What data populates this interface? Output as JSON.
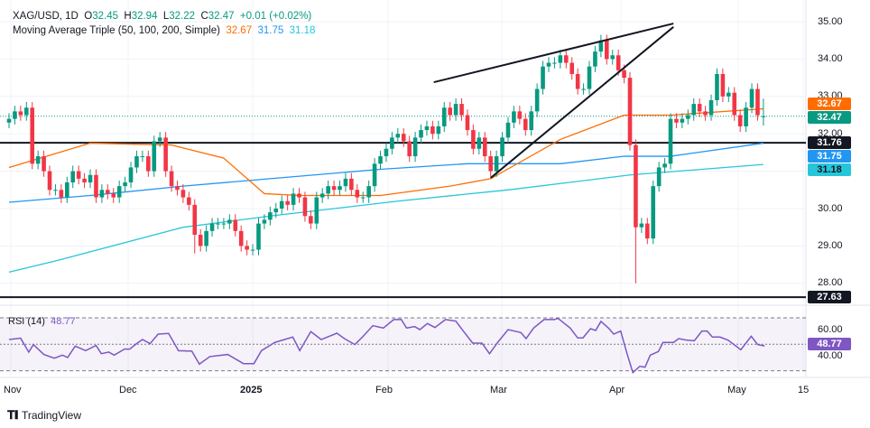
{
  "header": {
    "symbol": "XAG/USD, 1D",
    "o_label": "O",
    "o": "32.45",
    "h_label": "H",
    "h": "32.94",
    "l_label": "L",
    "l": "32.22",
    "c_label": "C",
    "c": "32.47",
    "change": "+0.01 (+0.02%)",
    "ma_title": "Moving Average Triple (50, 100, 200, Simple)",
    "ma50": "32.67",
    "ma100": "31.75",
    "ma200": "31.18"
  },
  "rsi": {
    "title": "RSI (14)",
    "value": "48.77"
  },
  "price_ticks": [
    "35.00",
    "34.00",
    "33.00",
    "32.00",
    "30.00",
    "29.00",
    "28.00"
  ],
  "rsi_ticks": [
    "60.00",
    "40.00"
  ],
  "price_labels": {
    "ma50": "32.67",
    "close": "32.47",
    "support_high": "31.76",
    "ma100": "31.75",
    "ma200": "31.18",
    "support_low": "27.63"
  },
  "date_labels": [
    "Nov",
    "Dec",
    "2025",
    "Feb",
    "Mar",
    "Apr",
    "May",
    "15"
  ],
  "footer": {
    "brand": "TradingView"
  },
  "colors": {
    "up": "#089981",
    "down": "#f23645",
    "ma50": "#ff6d00",
    "ma100": "#2196f3",
    "ma200": "#26c6da",
    "rsi": "#7e57c2",
    "line": "#131722"
  },
  "chart_data": {
    "type": "candlestick",
    "title": "XAG/USD, 1D",
    "ylim": [
      27.4,
      35.3
    ],
    "first_open": 32.3,
    "closes": [
      32.4,
      32.6,
      32.5,
      32.7,
      31.2,
      31.4,
      31.0,
      30.5,
      30.5,
      30.3,
      30.7,
      31.0,
      30.8,
      30.7,
      30.9,
      30.3,
      30.5,
      30.4,
      30.3,
      30.6,
      30.7,
      31.1,
      31.4,
      31.4,
      31.0,
      31.8,
      31.9,
      31.0,
      30.6,
      30.5,
      30.3,
      30.1,
      29.3,
      29.0,
      29.4,
      29.6,
      29.6,
      29.6,
      29.7,
      29.4,
      29.0,
      28.9,
      28.9,
      29.6,
      29.7,
      29.9,
      30.0,
      30.2,
      30.1,
      30.4,
      30.3,
      29.8,
      29.6,
      30.3,
      30.4,
      30.6,
      30.5,
      30.6,
      30.8,
      30.5,
      30.3,
      30.3,
      30.6,
      31.2,
      31.4,
      31.6,
      31.9,
      32.0,
      31.8,
      31.4,
      31.9,
      32.1,
      32.2,
      32.0,
      32.2,
      32.7,
      32.5,
      32.8,
      32.5,
      32.1,
      31.6,
      31.9,
      31.4,
      31.0,
      31.4,
      31.9,
      32.3,
      32.6,
      32.4,
      32.1,
      32.6,
      33.2,
      33.8,
      33.9,
      33.9,
      34.1,
      33.9,
      33.6,
      33.2,
      33.2,
      33.8,
      34.2,
      34.5,
      34.0,
      34.1,
      33.7,
      33.5,
      31.7,
      29.5,
      29.6,
      29.2,
      30.6,
      31.1,
      31.2,
      32.4,
      32.3,
      32.4,
      32.5,
      32.8,
      32.6,
      32.5,
      32.9,
      33.6,
      33.0,
      33.1,
      32.5,
      32.2,
      32.7,
      33.2,
      32.5,
      32.47
    ],
    "low_overrides": {
      "108": 28.0,
      "32": 28.8
    },
    "last_ohlc": [
      32.45,
      32.94,
      32.22,
      32.47
    ],
    "ma50": [
      [
        0,
        31.1
      ],
      [
        14,
        31.75
      ],
      [
        28,
        31.7
      ],
      [
        37,
        31.35
      ],
      [
        44,
        30.4
      ],
      [
        50,
        30.35
      ],
      [
        64,
        30.35
      ],
      [
        76,
        30.6
      ],
      [
        83,
        30.8
      ],
      [
        95,
        31.85
      ],
      [
        106,
        32.5
      ],
      [
        114,
        32.5
      ],
      [
        130,
        32.67
      ]
    ],
    "ma100": [
      [
        0,
        30.17
      ],
      [
        14,
        30.35
      ],
      [
        30,
        30.6
      ],
      [
        45,
        30.8
      ],
      [
        64,
        31.05
      ],
      [
        79,
        31.2
      ],
      [
        95,
        31.2
      ],
      [
        106,
        31.4
      ],
      [
        114,
        31.4
      ],
      [
        130,
        31.75
      ]
    ],
    "ma200": [
      [
        0,
        28.3
      ],
      [
        8,
        28.6
      ],
      [
        30,
        29.5
      ],
      [
        45,
        29.8
      ],
      [
        67,
        30.2
      ],
      [
        86,
        30.5
      ],
      [
        107,
        30.9
      ],
      [
        130,
        31.18
      ]
    ],
    "horizontal_levels": [
      31.76,
      27.63
    ],
    "close_line": 32.47,
    "wedge": [
      [
        [
          73.2,
          33.38
        ],
        [
          114.5,
          34.95
        ]
      ],
      [
        [
          83,
          30.82
        ],
        [
          114.5,
          34.86
        ]
      ]
    ],
    "rsi_series": [
      [
        0,
        53.6
      ],
      [
        2,
        54.6
      ],
      [
        3.4,
        44.1
      ],
      [
        4.2,
        49.8
      ],
      [
        6,
        42.3
      ],
      [
        7.8,
        39.5
      ],
      [
        9.2,
        41.8
      ],
      [
        10.1,
        40
      ],
      [
        11.4,
        48.6
      ],
      [
        13.2,
        45.2
      ],
      [
        15,
        49.1
      ],
      [
        15.9,
        42.9
      ],
      [
        17.2,
        44.1
      ],
      [
        18.1,
        41.8
      ],
      [
        19.9,
        46.4
      ],
      [
        20.8,
        46.4
      ],
      [
        22.1,
        50.9
      ],
      [
        23,
        53.6
      ],
      [
        24.3,
        50.5
      ],
      [
        25.7,
        57.7
      ],
      [
        27.5,
        58.2
      ],
      [
        29.2,
        45.2
      ],
      [
        31.5,
        44.8
      ],
      [
        32.8,
        35
      ],
      [
        34.6,
        40.7
      ],
      [
        37.7,
        42.3
      ],
      [
        40.4,
        35.4
      ],
      [
        42.2,
        35.4
      ],
      [
        43.5,
        45.2
      ],
      [
        45.8,
        51.4
      ],
      [
        48.9,
        55.5
      ],
      [
        50.1,
        45.2
      ],
      [
        52,
        59.6
      ],
      [
        53.8,
        53.6
      ],
      [
        56.5,
        58.4
      ],
      [
        57.8,
        54.3
      ],
      [
        59.6,
        49.8
      ],
      [
        60.9,
        55.5
      ],
      [
        62.7,
        64.1
      ],
      [
        64.5,
        62.3
      ],
      [
        66.3,
        68.7
      ],
      [
        67.6,
        68.7
      ],
      [
        68.5,
        62.3
      ],
      [
        69.9,
        63.4
      ],
      [
        70.8,
        61.1
      ],
      [
        72.1,
        65.7
      ],
      [
        73.4,
        62.7
      ],
      [
        75.2,
        68.7
      ],
      [
        77,
        67.5
      ],
      [
        78.2,
        60.5
      ],
      [
        79.9,
        50.9
      ],
      [
        81.5,
        50.9
      ],
      [
        82.8,
        42.9
      ],
      [
        84.2,
        51.4
      ],
      [
        86,
        61.1
      ],
      [
        88.2,
        58.9
      ],
      [
        89.1,
        54.3
      ],
      [
        90.4,
        62.3
      ],
      [
        92.2,
        68.7
      ],
      [
        94,
        68.7
      ],
      [
        94.6,
        69.6
      ],
      [
        96.7,
        62.3
      ],
      [
        98,
        54.8
      ],
      [
        98.9,
        54.8
      ],
      [
        100.2,
        61.8
      ],
      [
        101.1,
        60.5
      ],
      [
        102,
        67.3
      ],
      [
        103.3,
        62.3
      ],
      [
        104.2,
        57.7
      ],
      [
        105.4,
        60
      ],
      [
        106.5,
        42.9
      ],
      [
        107.5,
        28.6
      ],
      [
        108.7,
        33.4
      ],
      [
        109.6,
        32.7
      ],
      [
        110.5,
        41.8
      ],
      [
        111.9,
        44.5
      ],
      [
        112.7,
        51.4
      ],
      [
        114.5,
        51.4
      ],
      [
        115.4,
        54.3
      ],
      [
        116.7,
        53.2
      ],
      [
        118.1,
        52.7
      ],
      [
        119.4,
        60
      ],
      [
        120.3,
        60
      ],
      [
        121.2,
        55.5
      ],
      [
        122.5,
        55.5
      ],
      [
        123.9,
        53.2
      ],
      [
        126.1,
        45.9
      ],
      [
        127.9,
        56.1
      ],
      [
        129,
        49.8
      ],
      [
        130.2,
        48.77
      ]
    ],
    "rsi_levels": [
      70,
      50,
      30
    ]
  }
}
